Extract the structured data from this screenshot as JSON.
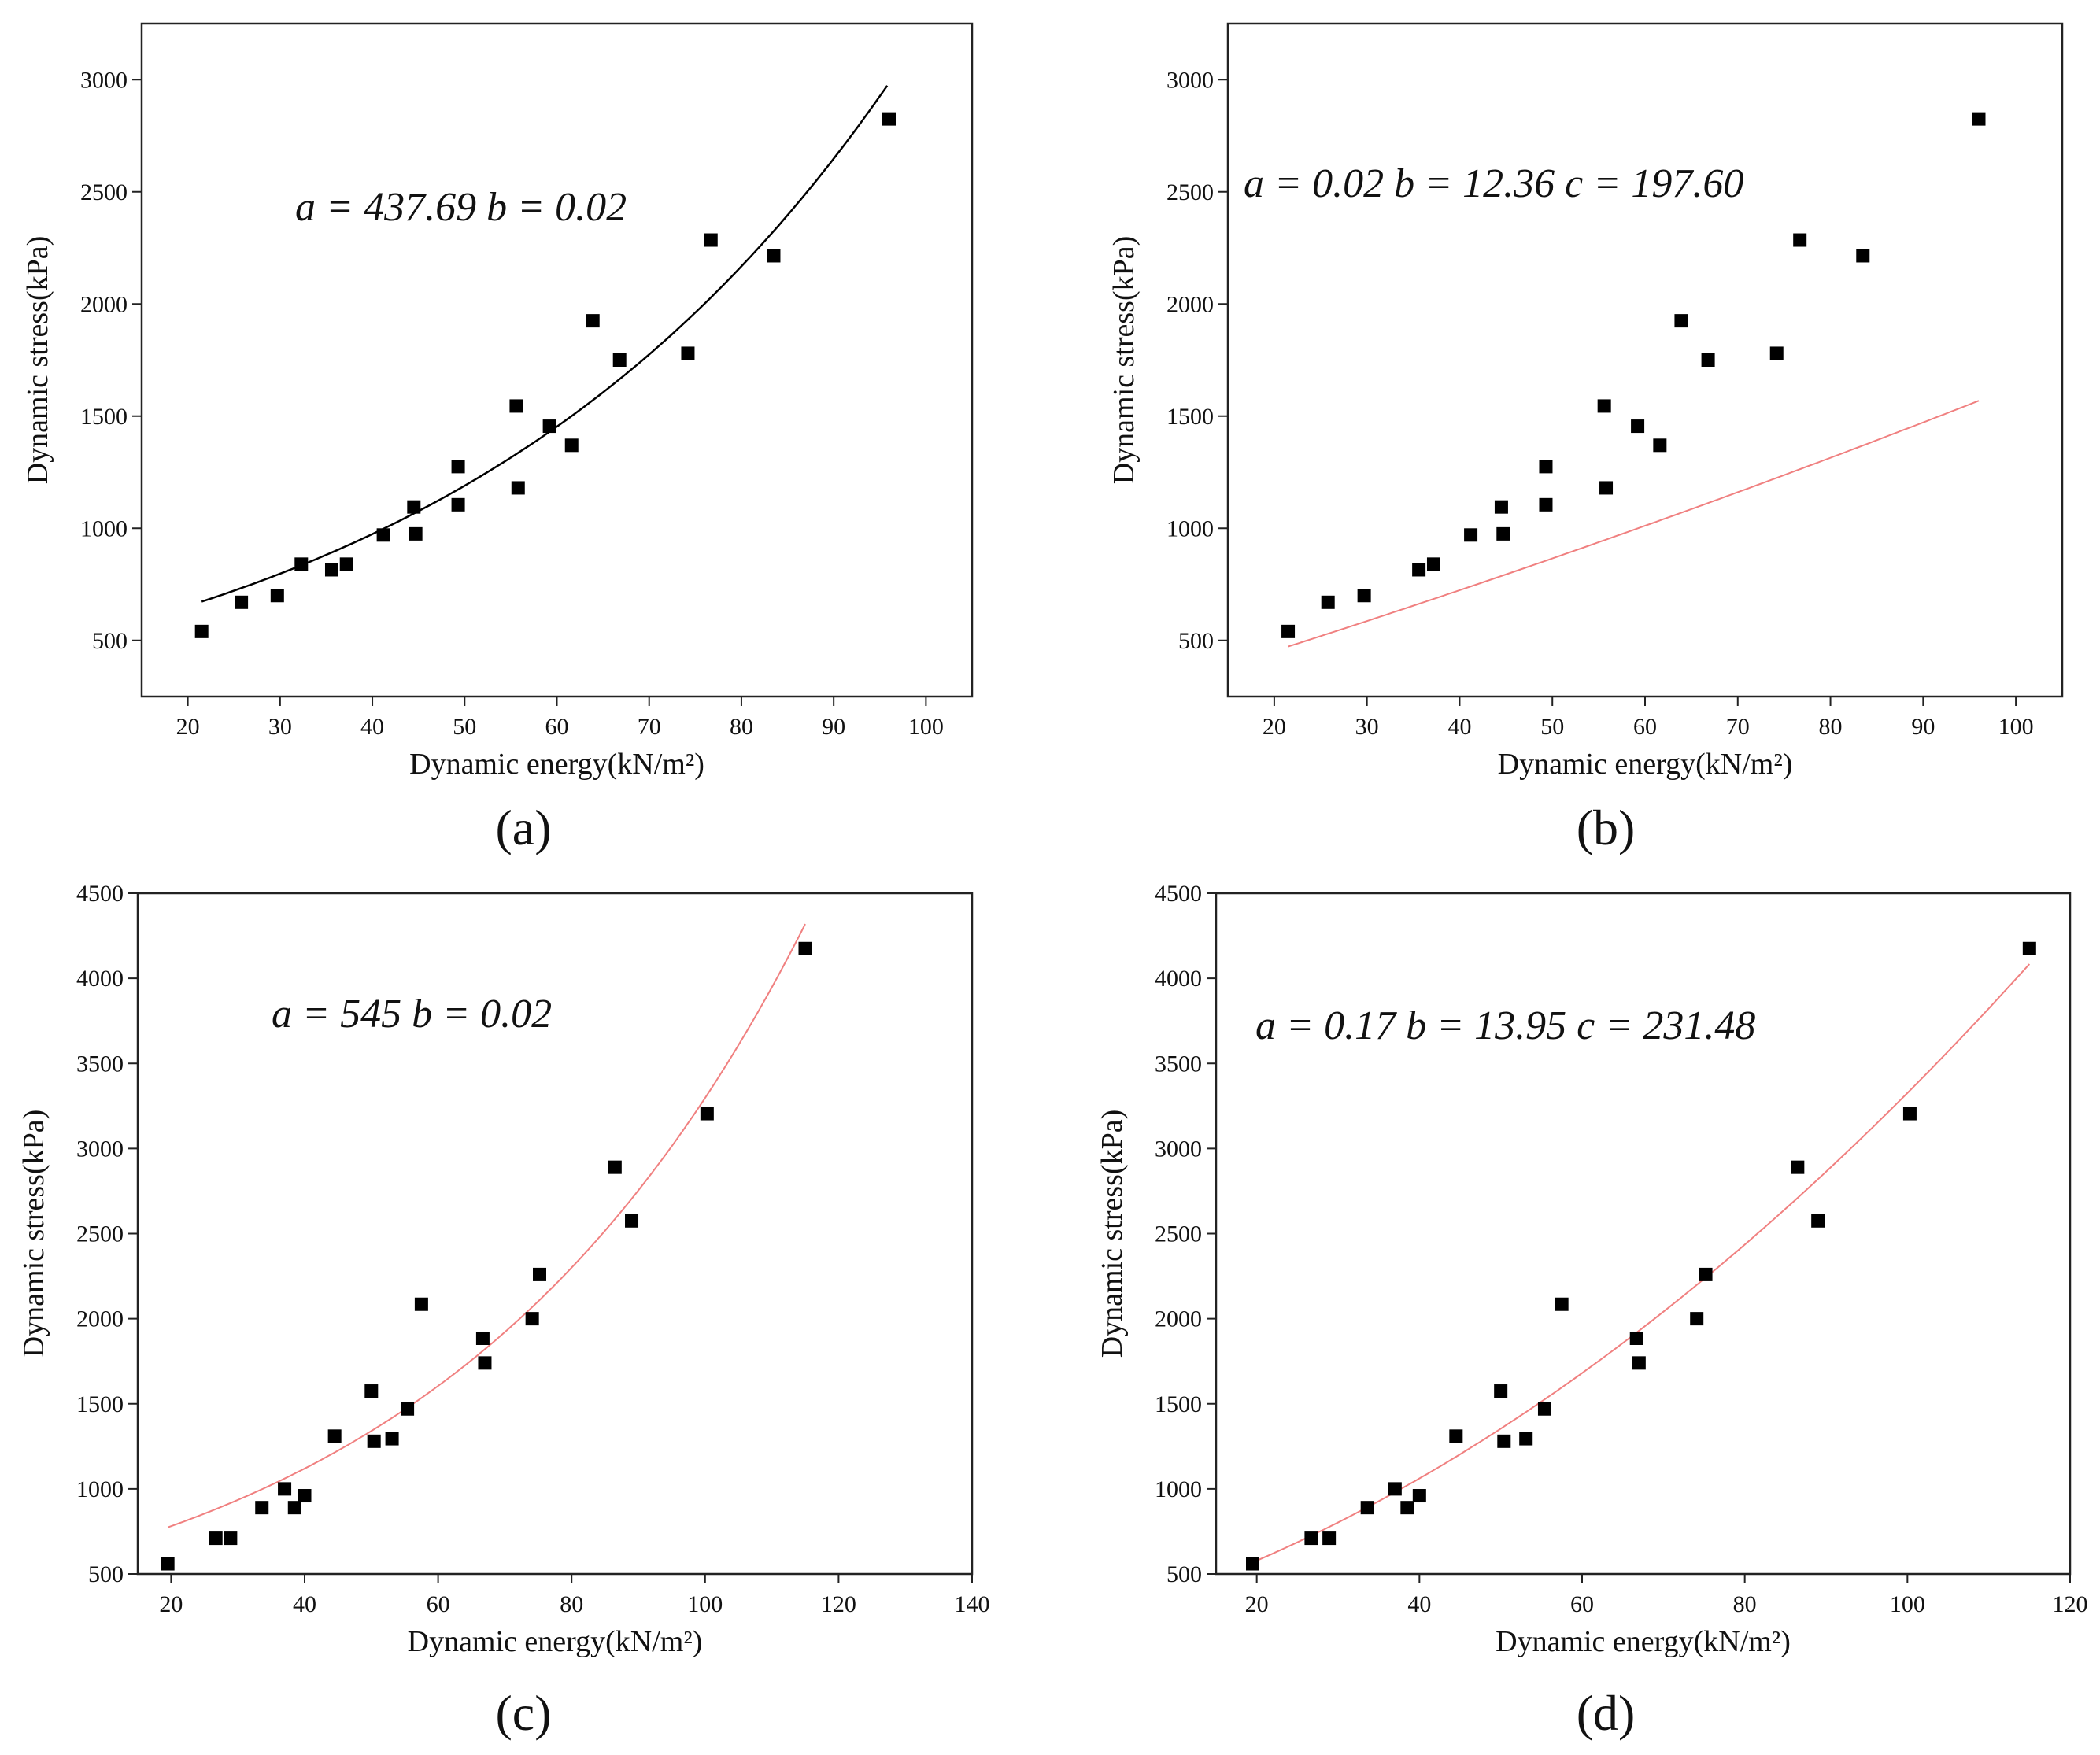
{
  "chart_data": [
    {
      "type": "scatter",
      "panel": "(a)",
      "annotation": "a = 437.69 b = 0.02",
      "xlabel": "Dynamic energy(kN/m²)",
      "ylabel": "Dynamic stress(kPa)",
      "xlim": [
        15,
        105
      ],
      "ylim": [
        250,
        3250
      ],
      "xticks": [
        20,
        30,
        40,
        50,
        60,
        70,
        80,
        90,
        100
      ],
      "yticks": [
        500,
        1000,
        1500,
        2000,
        2500,
        3000
      ],
      "fit": {
        "model": "exponential",
        "a": 437.69,
        "b": 0.02,
        "color": "#000000",
        "x_range": [
          21.5,
          95.8
        ]
      },
      "points": [
        [
          21.5,
          540
        ],
        [
          25.8,
          670
        ],
        [
          29.7,
          700
        ],
        [
          32.3,
          840
        ],
        [
          35.6,
          815
        ],
        [
          37.2,
          840
        ],
        [
          41.2,
          970
        ],
        [
          44.5,
          1095
        ],
        [
          44.7,
          975
        ],
        [
          49.3,
          1275
        ],
        [
          49.3,
          1105
        ],
        [
          55.6,
          1545
        ],
        [
          55.8,
          1180
        ],
        [
          59.2,
          1455
        ],
        [
          61.6,
          1370
        ],
        [
          63.9,
          1925
        ],
        [
          66.8,
          1750
        ],
        [
          74.2,
          1780
        ],
        [
          76.7,
          2285
        ],
        [
          83.5,
          2215
        ],
        [
          96.0,
          2825
        ]
      ]
    },
    {
      "type": "scatter",
      "panel": "(b)",
      "annotation": "a = 0.02 b = 12.36 c = 197.60",
      "xlabel": "Dynamic energy(kN/m²)",
      "ylabel": "Dynamic stress(kPa)",
      "xlim": [
        15,
        105
      ],
      "ylim": [
        250,
        3250
      ],
      "xticks": [
        20,
        30,
        40,
        50,
        60,
        70,
        80,
        90,
        100
      ],
      "yticks": [
        500,
        1000,
        1500,
        2000,
        2500,
        3000
      ],
      "fit": {
        "model": "quadratic",
        "a": 0.02,
        "b": 12.36,
        "c": 197.6,
        "color": "#f08080",
        "x_range": [
          21.5,
          96.0
        ]
      },
      "points": [
        [
          21.5,
          540
        ],
        [
          25.8,
          670
        ],
        [
          29.7,
          700
        ],
        [
          35.6,
          815
        ],
        [
          37.2,
          840
        ],
        [
          41.2,
          970
        ],
        [
          44.5,
          1095
        ],
        [
          44.7,
          975
        ],
        [
          49.3,
          1275
        ],
        [
          49.3,
          1105
        ],
        [
          55.6,
          1545
        ],
        [
          55.8,
          1180
        ],
        [
          59.2,
          1455
        ],
        [
          61.6,
          1370
        ],
        [
          63.9,
          1925
        ],
        [
          66.8,
          1750
        ],
        [
          74.2,
          1780
        ],
        [
          76.7,
          2285
        ],
        [
          83.5,
          2215
        ],
        [
          96.0,
          2825
        ]
      ]
    },
    {
      "type": "scatter",
      "panel": "(c)",
      "annotation": "a = 545 b = 0.02",
      "xlabel": "Dynamic energy(kN/m²)",
      "ylabel": "Dynamic stress(kPa)",
      "xlim": [
        15,
        140
      ],
      "ylim": [
        500,
        4500
      ],
      "xticks": [
        20,
        40,
        60,
        80,
        100,
        120,
        140
      ],
      "yticks": [
        500,
        1000,
        1500,
        2000,
        2500,
        3000,
        3500,
        4000,
        4500
      ],
      "fit": {
        "model": "exponential",
        "a": 545,
        "b": 0.018,
        "color": "#f08080",
        "x_range": [
          19.5,
          115.0
        ]
      },
      "points": [
        [
          19.5,
          560
        ],
        [
          26.7,
          710
        ],
        [
          28.9,
          710
        ],
        [
          33.6,
          890
        ],
        [
          37.0,
          1000
        ],
        [
          38.5,
          890
        ],
        [
          40.0,
          960
        ],
        [
          44.5,
          1310
        ],
        [
          50.0,
          1575
        ],
        [
          50.4,
          1280
        ],
        [
          53.1,
          1295
        ],
        [
          55.4,
          1470
        ],
        [
          57.5,
          2085
        ],
        [
          66.7,
          1885
        ],
        [
          67.0,
          1740
        ],
        [
          74.1,
          2000
        ],
        [
          75.2,
          2260
        ],
        [
          86.5,
          2890
        ],
        [
          89.0,
          2575
        ],
        [
          100.3,
          3205
        ],
        [
          115.0,
          4175
        ]
      ]
    },
    {
      "type": "scatter",
      "panel": "(d)",
      "annotation": "a = 0.17 b = 13.95 c = 231.48",
      "xlabel": "Dynamic energy(kN/m²)",
      "ylabel": "Dynamic stress(kPa)",
      "xlim": [
        15,
        120
      ],
      "ylim": [
        500,
        4500
      ],
      "xticks": [
        20,
        40,
        60,
        80,
        100,
        120
      ],
      "yticks": [
        500,
        1000,
        1500,
        2000,
        2500,
        3000,
        3500,
        4000,
        4500
      ],
      "fit": {
        "model": "quadratic",
        "a": 0.17,
        "b": 13.95,
        "c": 231.48,
        "color": "#f08080",
        "x_range": [
          19.5,
          115.0
        ]
      },
      "points": [
        [
          19.5,
          560
        ],
        [
          26.7,
          710
        ],
        [
          28.9,
          710
        ],
        [
          33.6,
          890
        ],
        [
          37.0,
          1000
        ],
        [
          38.5,
          890
        ],
        [
          40.0,
          960
        ],
        [
          44.5,
          1310
        ],
        [
          50.0,
          1575
        ],
        [
          50.4,
          1280
        ],
        [
          53.1,
          1295
        ],
        [
          55.4,
          1470
        ],
        [
          57.5,
          2085
        ],
        [
          66.7,
          1885
        ],
        [
          67.0,
          1740
        ],
        [
          74.1,
          2000
        ],
        [
          75.2,
          2260
        ],
        [
          86.5,
          2890
        ],
        [
          89.0,
          2575
        ],
        [
          100.3,
          3205
        ],
        [
          115.0,
          4175
        ]
      ]
    }
  ]
}
